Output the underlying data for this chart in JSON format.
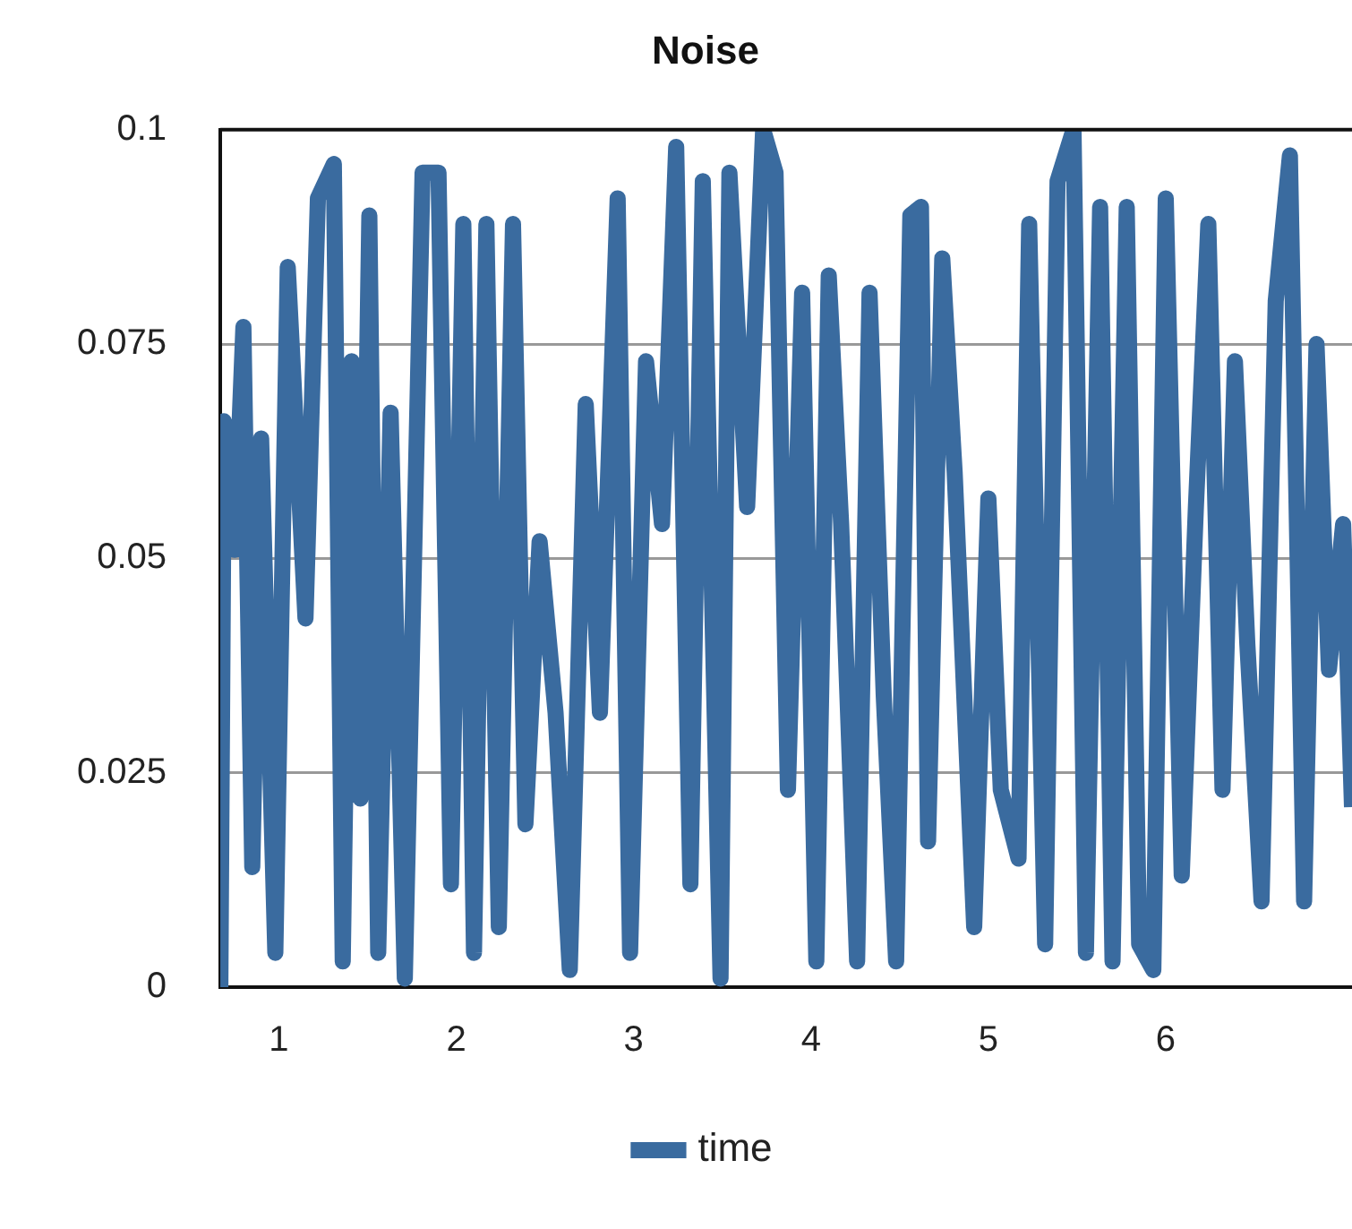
{
  "chart_data": {
    "type": "line",
    "title": "Noise",
    "legend": "bottom",
    "grid": "y",
    "marker": "none",
    "line_style": "solid",
    "xlim": [
      0.67,
      7.05
    ],
    "xticks": [
      1,
      2,
      3,
      4,
      5,
      6
    ],
    "ylim": [
      0,
      0.1
    ],
    "yticks": [
      0,
      0.025,
      0.05,
      0.075,
      0.1
    ],
    "x": [
      0.67,
      0.69,
      0.75,
      0.8,
      0.85,
      0.9,
      0.98,
      1.05,
      1.15,
      1.22,
      1.31,
      1.36,
      1.41,
      1.46,
      1.51,
      1.56,
      1.63,
      1.71,
      1.81,
      1.9,
      1.97,
      2.04,
      2.1,
      2.17,
      2.24,
      2.32,
      2.39,
      2.47,
      2.56,
      2.64,
      2.73,
      2.81,
      2.91,
      2.98,
      3.07,
      3.16,
      3.24,
      3.32,
      3.39,
      3.49,
      3.54,
      3.64,
      3.73,
      3.8,
      3.87,
      3.95,
      4.03,
      4.1,
      4.17,
      4.26,
      4.33,
      4.41,
      4.48,
      4.56,
      4.62,
      4.66,
      4.74,
      4.81,
      4.92,
      5.0,
      5.07,
      5.17,
      5.23,
      5.32,
      5.39,
      5.48,
      5.55,
      5.63,
      5.7,
      5.78,
      5.85,
      5.93,
      6.0,
      6.09,
      6.17,
      6.24,
      6.32,
      6.39,
      6.46,
      6.54,
      6.62,
      6.7,
      6.78,
      6.85,
      6.92,
      7.0,
      7.05
    ],
    "series": [
      {
        "name": "time",
        "color": "#3a6b9f",
        "values": [
          0,
          0.066,
          0.051,
          0.077,
          0.014,
          0.064,
          0.004,
          0.084,
          0.043,
          0.092,
          0.096,
          0.003,
          0.073,
          0.022,
          0.09,
          0.004,
          0.067,
          0.001,
          0.095,
          0.095,
          0.012,
          0.089,
          0.004,
          0.089,
          0.007,
          0.089,
          0.019,
          0.052,
          0.032,
          0.002,
          0.068,
          0.032,
          0.092,
          0.004,
          0.073,
          0.054,
          0.098,
          0.012,
          0.094,
          0.001,
          0.095,
          0.056,
          0.1,
          0.095,
          0.023,
          0.081,
          0.003,
          0.083,
          0.054,
          0.003,
          0.081,
          0.034,
          0.003,
          0.09,
          0.091,
          0.017,
          0.085,
          0.06,
          0.007,
          0.057,
          0.023,
          0.015,
          0.089,
          0.005,
          0.094,
          0.1,
          0.004,
          0.091,
          0.003,
          0.091,
          0.005,
          0.002,
          0.092,
          0.013,
          0.056,
          0.089,
          0.023,
          0.073,
          0.04,
          0.01,
          0.08,
          0.097,
          0.01,
          0.075,
          0.037,
          0.054,
          0.021
        ]
      }
    ]
  }
}
